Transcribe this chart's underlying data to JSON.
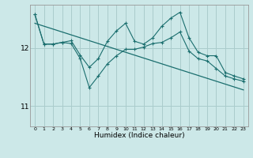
{
  "xlabel": "Humidex (Indice chaleur)",
  "bg_color": "#cce8e8",
  "grid_color": "#aacccc",
  "line_color": "#1a6e6e",
  "x_min": -0.5,
  "x_max": 23.5,
  "y_min": 10.65,
  "y_max": 12.75,
  "yticks": [
    11,
    12
  ],
  "xticks": [
    0,
    1,
    2,
    3,
    4,
    5,
    6,
    7,
    8,
    9,
    10,
    11,
    12,
    13,
    14,
    15,
    16,
    17,
    18,
    19,
    20,
    21,
    22,
    23
  ],
  "line1_x": [
    0,
    1,
    2,
    3,
    4,
    5,
    6,
    7,
    8,
    9,
    10,
    11,
    12,
    13,
    14,
    15,
    16,
    17,
    18,
    19,
    20,
    21,
    22,
    23
  ],
  "line1_y": [
    12.58,
    12.07,
    12.07,
    12.1,
    12.13,
    11.88,
    11.67,
    11.82,
    12.12,
    12.3,
    12.43,
    12.12,
    12.07,
    12.18,
    12.38,
    12.52,
    12.62,
    12.18,
    11.93,
    11.87,
    11.87,
    11.58,
    11.52,
    11.47
  ],
  "line2_x": [
    0,
    1,
    2,
    3,
    4,
    5,
    6,
    7,
    8,
    9,
    10,
    11,
    12,
    13,
    14,
    15,
    16,
    17,
    18,
    19,
    20,
    21,
    22,
    23
  ],
  "line2_y": [
    12.58,
    12.07,
    12.07,
    12.1,
    12.08,
    11.82,
    11.32,
    11.52,
    11.73,
    11.87,
    11.98,
    11.98,
    12.02,
    12.08,
    12.1,
    12.18,
    12.28,
    11.95,
    11.82,
    11.78,
    11.65,
    11.52,
    11.47,
    11.43
  ],
  "line3_x": [
    0,
    23
  ],
  "line3_y": [
    12.43,
    11.28
  ]
}
